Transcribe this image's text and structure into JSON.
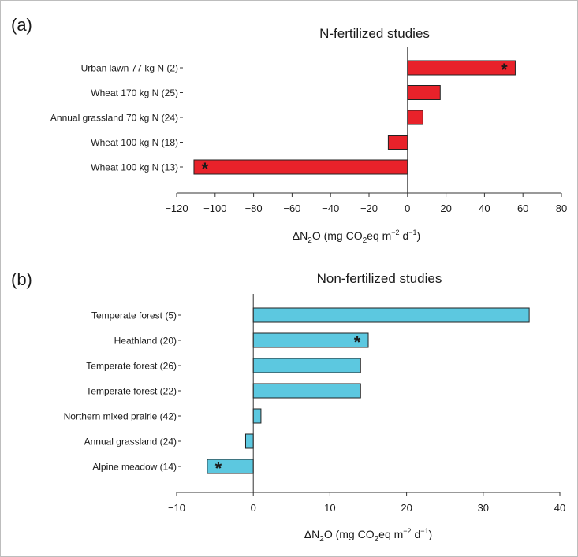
{
  "chart_data": [
    {
      "type": "bar",
      "orientation": "horizontal",
      "panel_label": "(a)",
      "title": "N-fertilized studies",
      "xlabel": "ΔN2O (mg CO2eq m−2 d−1)",
      "xlim": [
        -120,
        80
      ],
      "xticks": [
        -120,
        -100,
        -80,
        -60,
        -40,
        -20,
        0,
        20,
        40,
        60,
        80
      ],
      "tick_labels": [
        "−120",
        "−100",
        "−80",
        "−60",
        "−40",
        "−20",
        "0",
        "20",
        "40",
        "60",
        "80"
      ],
      "categories": [
        "Urban lawn 77 kg N (2)",
        "Wheat 170 kg N (25)",
        "Annual grassland 70 kg N (24)",
        "Wheat 100 kg N (18)",
        "Wheat 100 kg N (13)"
      ],
      "values": [
        56,
        17,
        8,
        -10,
        -111
      ],
      "significant": [
        true,
        false,
        false,
        false,
        true
      ],
      "bar_color": "#e8222a",
      "marker_symbol": "*"
    },
    {
      "type": "bar",
      "orientation": "horizontal",
      "panel_label": "(b)",
      "title": "Non-fertilized studies",
      "xlabel": "ΔN2O (mg CO2eq m−2 d−1)",
      "xlim": [
        -10,
        40
      ],
      "xticks": [
        -10,
        0,
        10,
        20,
        30,
        40
      ],
      "tick_labels": [
        "−10",
        "0",
        "10",
        "20",
        "30",
        "40"
      ],
      "categories": [
        "Temperate forest (5)",
        "Heathland (20)",
        "Temperate forest (26)",
        "Temperate forest (22)",
        "Northern mixed prairie (42)",
        "Annual grassland (24)",
        "Alpine meadow (14)"
      ],
      "values": [
        36,
        15,
        14,
        14,
        1,
        -1,
        -6
      ],
      "significant": [
        false,
        true,
        false,
        false,
        false,
        false,
        true
      ],
      "bar_color": "#5cc8e0",
      "marker_symbol": "*"
    }
  ]
}
